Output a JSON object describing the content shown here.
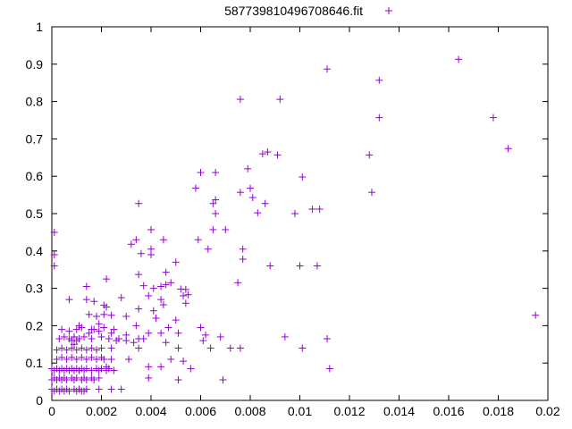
{
  "chart_data": {
    "type": "scatter",
    "title": "",
    "xlabel": "",
    "ylabel": "",
    "xlim": [
      0,
      0.02
    ],
    "ylim": [
      0,
      1
    ],
    "x_ticks": [
      0,
      0.002,
      0.004,
      0.006,
      0.008,
      0.01,
      0.012,
      0.014,
      0.016,
      0.018,
      0.02
    ],
    "x_tick_labels": [
      "0",
      "0.002",
      "0.004",
      "0.006",
      "0.008",
      "0.01",
      "0.012",
      "0.014",
      "0.016",
      "0.018",
      "0.02"
    ],
    "y_ticks": [
      0,
      0.1,
      0.2,
      0.3,
      0.4,
      0.5,
      0.6,
      0.7,
      0.8,
      0.9,
      1
    ],
    "y_tick_labels": [
      "0",
      "0.1",
      "0.2",
      "0.3",
      "0.4",
      "0.5",
      "0.6",
      "0.7",
      "0.8",
      "0.9",
      "1"
    ],
    "grid": false,
    "legend": {
      "position": "top-right",
      "entries": [
        "587739810496708646.fit"
      ]
    },
    "colors": {
      "series": "#9400d3",
      "axis": "#000000"
    },
    "series": [
      {
        "name": "587739810496708646.fit",
        "marker": "plus",
        "points": [
          [
            0.0164,
            0.913
          ],
          [
            0.0111,
            0.887
          ],
          [
            0.0132,
            0.857
          ],
          [
            0.0076,
            0.806
          ],
          [
            0.0092,
            0.806
          ],
          [
            0.0178,
            0.757
          ],
          [
            0.0132,
            0.757
          ],
          [
            0.0184,
            0.674
          ],
          [
            0.0087,
            0.665
          ],
          [
            0.0085,
            0.66
          ],
          [
            0.0091,
            0.657
          ],
          [
            0.0128,
            0.657
          ],
          [
            0.0079,
            0.62
          ],
          [
            0.006,
            0.61
          ],
          [
            0.0066,
            0.61
          ],
          [
            0.0101,
            0.598
          ],
          [
            0.0058,
            0.568
          ],
          [
            0.008,
            0.568
          ],
          [
            0.0076,
            0.557
          ],
          [
            0.0129,
            0.557
          ],
          [
            0.0081,
            0.543
          ],
          [
            0.0066,
            0.537
          ],
          [
            0.0065,
            0.527
          ],
          [
            0.0086,
            0.527
          ],
          [
            0.0035,
            0.527
          ],
          [
            0.0105,
            0.512
          ],
          [
            0.0108,
            0.512
          ],
          [
            0.0083,
            0.502
          ],
          [
            0.0098,
            0.5
          ],
          [
            0.0066,
            0.5
          ],
          [
            0.0065,
            0.457
          ],
          [
            0.007,
            0.457
          ],
          [
            0.004,
            0.457
          ],
          [
            0.0001,
            0.45
          ],
          [
            0.0059,
            0.43
          ],
          [
            0.0034,
            0.43
          ],
          [
            0.0045,
            0.43
          ],
          [
            0.0032,
            0.418
          ],
          [
            0.004,
            0.405
          ],
          [
            0.0063,
            0.405
          ],
          [
            0.0077,
            0.405
          ],
          [
            0.0036,
            0.393
          ],
          [
            0.004,
            0.39
          ],
          [
            0.0001,
            0.39
          ],
          [
            0.0077,
            0.378
          ],
          [
            0.005,
            0.37
          ],
          [
            0.0001,
            0.36
          ],
          [
            0.0088,
            0.36
          ],
          [
            0.01,
            0.36
          ],
          [
            0.0107,
            0.36
          ],
          [
            0.0046,
            0.343
          ],
          [
            0.0035,
            0.337
          ],
          [
            0.0022,
            0.325
          ],
          [
            0.0075,
            0.315
          ],
          [
            0.0048,
            0.315
          ],
          [
            0.0037,
            0.307
          ],
          [
            0.0044,
            0.305
          ],
          [
            0.0014,
            0.305
          ],
          [
            0.0046,
            0.31
          ],
          [
            0.0041,
            0.3
          ],
          [
            0.0052,
            0.298
          ],
          [
            0.0054,
            0.297
          ],
          [
            0.0055,
            0.283
          ],
          [
            0.0039,
            0.28
          ],
          [
            0.0053,
            0.28
          ],
          [
            0.0028,
            0.275
          ],
          [
            0.0044,
            0.27
          ],
          [
            0.0007,
            0.27
          ],
          [
            0.0014,
            0.27
          ],
          [
            0.0017,
            0.265
          ],
          [
            0.0054,
            0.26
          ],
          [
            0.0045,
            0.256
          ],
          [
            0.0035,
            0.245
          ],
          [
            0.0041,
            0.24
          ],
          [
            0.0021,
            0.255
          ],
          [
            0.0022,
            0.25
          ],
          [
            0.0024,
            0.228
          ],
          [
            0.0015,
            0.23
          ],
          [
            0.0018,
            0.225
          ],
          [
            0.0021,
            0.23
          ],
          [
            0.0042,
            0.22
          ],
          [
            0.003,
            0.225
          ],
          [
            0.005,
            0.215
          ],
          [
            0.0011,
            0.2
          ],
          [
            0.0034,
            0.2
          ],
          [
            0.0019,
            0.205
          ],
          [
            0.006,
            0.195
          ],
          [
            0.0047,
            0.195
          ],
          [
            0.0016,
            0.19
          ],
          [
            0.0015,
            0.18
          ],
          [
            0.0019,
            0.185
          ],
          [
            0.003,
            0.175
          ],
          [
            0.0024,
            0.18
          ],
          [
            0.0039,
            0.18
          ],
          [
            0.0044,
            0.18
          ],
          [
            0.0051,
            0.18
          ],
          [
            0.0062,
            0.175
          ],
          [
            0.0068,
            0.17
          ],
          [
            0.0094,
            0.17
          ],
          [
            0.0111,
            0.165
          ],
          [
            0.0195,
            0.228
          ],
          [
            0.0061,
            0.16
          ],
          [
            0.0035,
            0.165
          ],
          [
            0.0037,
            0.165
          ],
          [
            0.0033,
            0.155
          ],
          [
            0.0046,
            0.155
          ],
          [
            0.0008,
            0.16
          ],
          [
            0.001,
            0.16
          ],
          [
            0.0026,
            0.16
          ],
          [
            0.0009,
            0.15
          ],
          [
            0.0035,
            0.14
          ],
          [
            0.0024,
            0.14
          ],
          [
            0.0051,
            0.14
          ],
          [
            0.0064,
            0.14
          ],
          [
            0.0072,
            0.14
          ],
          [
            0.0076,
            0.14
          ],
          [
            0.0101,
            0.14
          ],
          [
            0.0031,
            0.11
          ],
          [
            0.0048,
            0.11
          ],
          [
            0.0053,
            0.105
          ],
          [
            0.0024,
            0.11
          ],
          [
            0.0044,
            0.09
          ],
          [
            0.0039,
            0.09
          ],
          [
            0.0056,
            0.085
          ],
          [
            0.0112,
            0.085
          ],
          [
            0.0022,
            0.09
          ],
          [
            0.0039,
            0.06
          ],
          [
            0.0051,
            0.055
          ],
          [
            0.0069,
            0.055
          ],
          [
            0.0024,
            0.03
          ],
          [
            0.0028,
            0.03
          ],
          [
            0.0019,
            0.03
          ],
          [
            0.0013,
            0.025
          ],
          [
            0.0,
            0.085
          ],
          [
            0.0001,
            0.08
          ],
          [
            0.0002,
            0.085
          ],
          [
            0.0003,
            0.08
          ],
          [
            0.0004,
            0.085
          ],
          [
            0.0005,
            0.08
          ],
          [
            0.0006,
            0.085
          ],
          [
            0.0007,
            0.08
          ],
          [
            0.0008,
            0.085
          ],
          [
            0.0009,
            0.08
          ],
          [
            0.001,
            0.085
          ],
          [
            0.0011,
            0.08
          ],
          [
            0.0012,
            0.085
          ],
          [
            0.0013,
            0.08
          ],
          [
            0.0014,
            0.085
          ],
          [
            0.0016,
            0.08
          ],
          [
            0.0018,
            0.085
          ],
          [
            0.0019,
            0.08
          ],
          [
            0.002,
            0.085
          ],
          [
            0.0022,
            0.08
          ],
          [
            0.0023,
            0.085
          ],
          [
            0.0025,
            0.08
          ],
          [
            0.0,
            0.055
          ],
          [
            0.0001,
            0.06
          ],
          [
            0.0002,
            0.055
          ],
          [
            0.0003,
            0.06
          ],
          [
            0.0004,
            0.055
          ],
          [
            0.0005,
            0.06
          ],
          [
            0.0006,
            0.055
          ],
          [
            0.0008,
            0.06
          ],
          [
            0.0009,
            0.055
          ],
          [
            0.001,
            0.06
          ],
          [
            0.0012,
            0.055
          ],
          [
            0.0013,
            0.06
          ],
          [
            0.0014,
            0.055
          ],
          [
            0.0016,
            0.06
          ],
          [
            0.0017,
            0.055
          ],
          [
            0.0019,
            0.06
          ],
          [
            0.0,
            0.03
          ],
          [
            0.0001,
            0.025
          ],
          [
            0.0002,
            0.03
          ],
          [
            0.0003,
            0.025
          ],
          [
            0.0004,
            0.03
          ],
          [
            0.0005,
            0.025
          ],
          [
            0.0006,
            0.03
          ],
          [
            0.0007,
            0.025
          ],
          [
            0.0009,
            0.03
          ],
          [
            0.001,
            0.025
          ],
          [
            0.0011,
            0.03
          ],
          [
            0.0012,
            0.025
          ],
          [
            0.0014,
            0.03
          ],
          [
            0.0002,
            0.11
          ],
          [
            0.0004,
            0.115
          ],
          [
            0.0006,
            0.11
          ],
          [
            0.0008,
            0.115
          ],
          [
            0.001,
            0.11
          ],
          [
            0.0012,
            0.115
          ],
          [
            0.0014,
            0.11
          ],
          [
            0.0016,
            0.115
          ],
          [
            0.0018,
            0.11
          ],
          [
            0.002,
            0.115
          ],
          [
            0.0021,
            0.11
          ],
          [
            0.0002,
            0.135
          ],
          [
            0.0004,
            0.14
          ],
          [
            0.0006,
            0.135
          ],
          [
            0.0008,
            0.14
          ],
          [
            0.001,
            0.135
          ],
          [
            0.0012,
            0.14
          ],
          [
            0.0014,
            0.135
          ],
          [
            0.0016,
            0.14
          ],
          [
            0.0018,
            0.135
          ],
          [
            0.002,
            0.14
          ],
          [
            0.0003,
            0.165
          ],
          [
            0.0005,
            0.17
          ],
          [
            0.0007,
            0.165
          ],
          [
            0.0009,
            0.17
          ],
          [
            0.0011,
            0.165
          ],
          [
            0.0013,
            0.17
          ],
          [
            0.0016,
            0.165
          ],
          [
            0.002,
            0.17
          ],
          [
            0.0023,
            0.165
          ],
          [
            0.0027,
            0.165
          ],
          [
            0.003,
            0.16
          ],
          [
            0.0004,
            0.19
          ],
          [
            0.0007,
            0.185
          ],
          [
            0.001,
            0.19
          ],
          [
            0.0012,
            0.195
          ],
          [
            0.0017,
            0.19
          ],
          [
            0.0021,
            0.195
          ],
          [
            0.0025,
            0.19
          ]
        ]
      }
    ]
  }
}
